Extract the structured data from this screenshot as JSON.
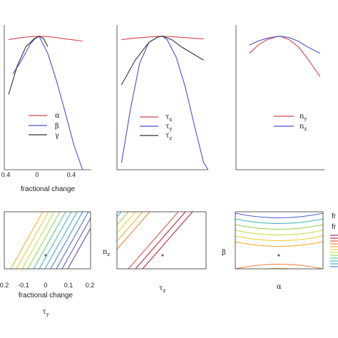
{
  "chart_data": [
    {
      "type": "line",
      "panel": "top-left",
      "xlabel": "fractional change",
      "xlim": [
        -0.4,
        0.6
      ],
      "ylim": [
        0,
        1
      ],
      "xticks": [
        "0.4",
        "0",
        "0.4"
      ],
      "legend": {
        "placement": "lower-center",
        "entries": [
          "α",
          "β",
          "γ"
        ]
      },
      "series": [
        {
          "name": "α",
          "color": "#d9434b",
          "x": [
            -0.35,
            -0.2,
            -0.1,
            0,
            0.1,
            0.2,
            0.3,
            0.5
          ],
          "y": [
            0.95,
            0.965,
            0.972,
            0.975,
            0.972,
            0.965,
            0.955,
            0.94
          ]
        },
        {
          "name": "β",
          "color": "#4a4fce",
          "x": [
            -0.3,
            -0.2,
            -0.1,
            -0.05,
            0,
            0.1,
            0.2,
            0.3,
            0.4,
            0.5
          ],
          "y": [
            0.7,
            0.8,
            0.92,
            0.955,
            0.975,
            0.85,
            0.65,
            0.42,
            0.18,
            -0.05
          ]
        },
        {
          "name": "γ",
          "color": "#333333",
          "x": [
            -0.35,
            -0.25,
            -0.15,
            -0.05,
            0,
            0.05,
            0.1
          ],
          "y": [
            0.55,
            0.76,
            0.9,
            0.96,
            0.975,
            0.96,
            0.9
          ]
        }
      ]
    },
    {
      "type": "line",
      "panel": "top-middle",
      "xlim": [
        -0.5,
        0.5
      ],
      "ylim": [
        0,
        1
      ],
      "legend": {
        "placement": "lower-center",
        "entries": [
          "τx",
          "τy",
          "τz"
        ]
      },
      "series": [
        {
          "name": "τx",
          "color": "#d9434b",
          "x": [
            -0.45,
            -0.3,
            -0.15,
            0,
            0.15,
            0.3,
            0.45
          ],
          "y": [
            0.95,
            0.962,
            0.97,
            0.975,
            0.97,
            0.962,
            0.955
          ]
        },
        {
          "name": "τy",
          "color": "#4a4fce",
          "x": [
            -0.45,
            -0.35,
            -0.25,
            -0.15,
            -0.05,
            0,
            0.05,
            0.15,
            0.25,
            0.35,
            0.45,
            0.5
          ],
          "y": [
            0.05,
            0.45,
            0.78,
            0.93,
            0.97,
            0.975,
            0.95,
            0.82,
            0.6,
            0.32,
            0.05,
            -0.15
          ]
        },
        {
          "name": "τz",
          "color": "#333333",
          "x": [
            -0.45,
            -0.3,
            -0.15,
            -0.05,
            0,
            0.1,
            0.2,
            0.3,
            0.45
          ],
          "y": [
            0.62,
            0.8,
            0.93,
            0.97,
            0.975,
            0.95,
            0.9,
            0.86,
            0.8
          ]
        }
      ]
    },
    {
      "type": "line",
      "panel": "top-right",
      "xlim": [
        -0.5,
        0.5
      ],
      "ylim": [
        0,
        1
      ],
      "legend": {
        "placement": "lower-right",
        "entries": [
          "ny",
          "nz"
        ]
      },
      "series": [
        {
          "name": "ny",
          "color": "#d9434b",
          "x": [
            -0.35,
            -0.25,
            -0.15,
            -0.05,
            0,
            0.1,
            0.2,
            0.3,
            0.45
          ],
          "y": [
            0.85,
            0.91,
            0.95,
            0.97,
            0.975,
            0.95,
            0.9,
            0.82,
            0.68
          ]
        },
        {
          "name": "nz",
          "color": "#4a4fce",
          "x": [
            -0.35,
            -0.25,
            -0.15,
            -0.05,
            0,
            0.1,
            0.2,
            0.3,
            0.45
          ],
          "y": [
            0.91,
            0.94,
            0.96,
            0.972,
            0.975,
            0.965,
            0.94,
            0.9,
            0.85
          ]
        }
      ]
    },
    {
      "type": "heatmap",
      "panel": "bottom-left",
      "xlabel": "fractional change",
      "ylabel": "τy",
      "xlim": [
        -0.2,
        0.2
      ],
      "xticks": [
        "0.2",
        "-0.1",
        "0",
        "0.1",
        "0.2"
      ],
      "contour": "diagonal bands, optimum at (0, 0)"
    },
    {
      "type": "heatmap",
      "panel": "bottom-middle",
      "xlabel": "τz",
      "ylabel": "nz",
      "contour": "diagonal bands, optimum at center"
    },
    {
      "type": "heatmap",
      "panel": "bottom-right",
      "xlabel": "α",
      "ylabel": "β",
      "contour": "horizontal arcs, optimum at center",
      "colorbar_labels": [
        "fr",
        "fr"
      ]
    }
  ]
}
